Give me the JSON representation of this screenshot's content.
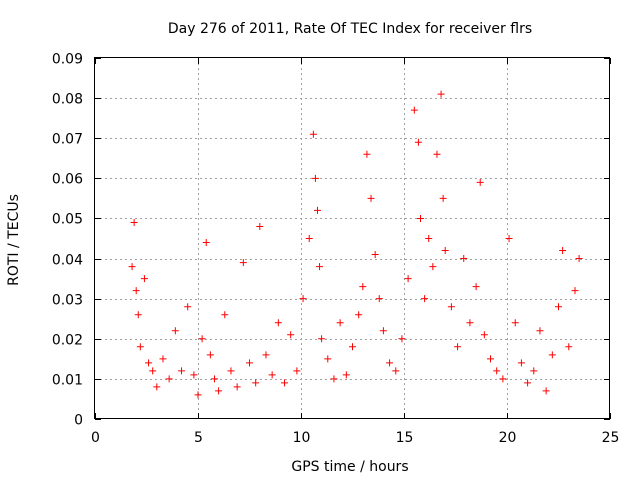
{
  "chart_data": {
    "type": "scatter",
    "title": "Day 276 of 2011, Rate Of TEC Index for receiver flrs",
    "xlabel": "GPS time / hours",
    "ylabel": "ROTI / TECUs",
    "xlim": [
      0,
      25
    ],
    "ylim": [
      0,
      0.09
    ],
    "x_ticks": [
      0,
      5,
      10,
      15,
      20,
      25
    ],
    "x_tick_labels": [
      "0",
      "5",
      "10",
      "15",
      "20",
      "25"
    ],
    "y_ticks": [
      0,
      0.01,
      0.02,
      0.03,
      0.04,
      0.05,
      0.06,
      0.07,
      0.08,
      0.09
    ],
    "y_tick_labels": [
      "0",
      "0.01",
      "0.02",
      "0.03",
      "0.04",
      "0.05",
      "0.06",
      "0.07",
      "0.08",
      "0.09"
    ],
    "grid": true,
    "marker": "+",
    "color": "#ff0000",
    "series": [
      {
        "name": "ROTI",
        "x": [
          1.8,
          1.9,
          2.0,
          2.1,
          2.2,
          2.4,
          2.6,
          2.8,
          3.0,
          3.3,
          3.6,
          3.9,
          4.2,
          4.5,
          4.8,
          5.0,
          5.2,
          5.4,
          5.6,
          5.8,
          6.0,
          6.3,
          6.6,
          6.9,
          7.2,
          7.5,
          7.8,
          8.0,
          8.3,
          8.6,
          8.9,
          9.2,
          9.5,
          9.8,
          10.1,
          10.4,
          10.6,
          10.7,
          10.8,
          10.9,
          11.0,
          11.3,
          11.6,
          11.9,
          12.2,
          12.5,
          12.8,
          13.0,
          13.2,
          13.4,
          13.6,
          13.8,
          14.0,
          14.3,
          14.6,
          14.9,
          15.2,
          15.5,
          15.7,
          15.8,
          16.0,
          16.2,
          16.4,
          16.6,
          16.8,
          16.9,
          17.0,
          17.3,
          17.6,
          17.9,
          18.2,
          18.5,
          18.7,
          18.9,
          19.2,
          19.5,
          19.8,
          20.1,
          20.4,
          20.7,
          21.0,
          21.3,
          21.6,
          21.9,
          22.2,
          22.5,
          22.7,
          23.0,
          23.3,
          23.5
        ],
        "y": [
          0.038,
          0.049,
          0.032,
          0.026,
          0.018,
          0.035,
          0.014,
          0.012,
          0.008,
          0.015,
          0.01,
          0.022,
          0.012,
          0.028,
          0.011,
          0.006,
          0.02,
          0.044,
          0.016,
          0.01,
          0.007,
          0.026,
          0.012,
          0.008,
          0.039,
          0.014,
          0.009,
          0.048,
          0.016,
          0.011,
          0.024,
          0.009,
          0.021,
          0.012,
          0.03,
          0.045,
          0.071,
          0.06,
          0.052,
          0.038,
          0.02,
          0.015,
          0.01,
          0.024,
          0.011,
          0.018,
          0.026,
          0.033,
          0.066,
          0.055,
          0.041,
          0.03,
          0.022,
          0.014,
          0.012,
          0.02,
          0.035,
          0.077,
          0.069,
          0.05,
          0.03,
          0.045,
          0.038,
          0.066,
          0.081,
          0.055,
          0.042,
          0.028,
          0.018,
          0.04,
          0.024,
          0.033,
          0.059,
          0.021,
          0.015,
          0.012,
          0.01,
          0.045,
          0.024,
          0.014,
          0.009,
          0.012,
          0.022,
          0.007,
          0.016,
          0.028,
          0.042,
          0.018,
          0.032,
          0.04
        ]
      }
    ]
  }
}
